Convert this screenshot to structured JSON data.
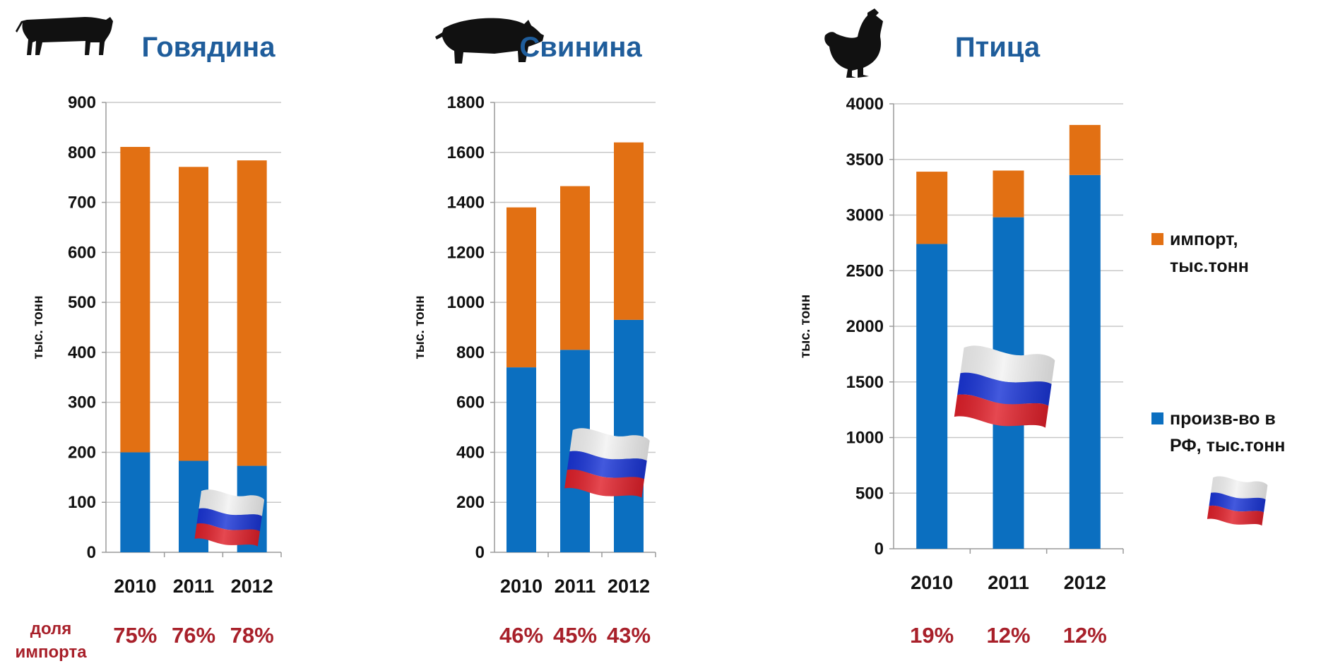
{
  "colors": {
    "import": "#e27013",
    "production": "#0b6fc0",
    "title": "#1f5d9b",
    "share": "#a8202a",
    "grid": "#c8c8c8",
    "axis": "#9a9a9a"
  },
  "icons": [
    "cow-icon",
    "pig-icon",
    "chicken-icon",
    "russia-flag-icon"
  ],
  "share_label": [
    "доля",
    "импорта"
  ],
  "legend": [
    {
      "series": "import",
      "lines": [
        "импорт,",
        "тыс.тонн"
      ]
    },
    {
      "series": "production",
      "lines": [
        "произв-во в",
        "РФ, тыс.тонн"
      ]
    }
  ],
  "chart_data": [
    {
      "type": "bar",
      "stacked": true,
      "title": "Говядина",
      "ylabel": "тыс. тонн",
      "ylim": [
        0,
        900
      ],
      "yticks": [
        0,
        100,
        200,
        300,
        400,
        500,
        600,
        700,
        800,
        900
      ],
      "grid": true,
      "categories": [
        "2010",
        "2011",
        "2012"
      ],
      "series": [
        {
          "key": "production",
          "name": "произв-во в РФ, тыс.тонн",
          "values": [
            200,
            183,
            173
          ]
        },
        {
          "key": "import",
          "name": "импорт, тыс.тонн",
          "values": [
            611,
            588,
            611
          ]
        }
      ],
      "import_share": [
        "75%",
        "76%",
        "78%"
      ]
    },
    {
      "type": "bar",
      "stacked": true,
      "title": "Свинина",
      "ylabel": "тыс. тонн",
      "ylim": [
        0,
        1800
      ],
      "yticks": [
        0,
        200,
        400,
        600,
        800,
        1000,
        1200,
        1400,
        1600,
        1800
      ],
      "grid": true,
      "categories": [
        "2010",
        "2011",
        "2012"
      ],
      "series": [
        {
          "key": "production",
          "name": "произв-во в РФ, тыс.тонн",
          "values": [
            740,
            810,
            930
          ]
        },
        {
          "key": "import",
          "name": "импорт, тыс.тонн",
          "values": [
            640,
            655,
            710
          ]
        }
      ],
      "import_share": [
        "46%",
        "45%",
        "43%"
      ]
    },
    {
      "type": "bar",
      "stacked": true,
      "title": "Птица",
      "ylabel": "тыс. тонн",
      "ylim": [
        0,
        4000
      ],
      "yticks": [
        0,
        500,
        1000,
        1500,
        2000,
        2500,
        3000,
        3500,
        4000
      ],
      "grid": true,
      "categories": [
        "2010",
        "2011",
        "2012"
      ],
      "series": [
        {
          "key": "production",
          "name": "произв-во в РФ, тыс.тонн",
          "values": [
            2740,
            2980,
            3360
          ]
        },
        {
          "key": "import",
          "name": "импорт, тыс.тонн",
          "values": [
            650,
            420,
            450
          ]
        }
      ],
      "import_share": [
        "19%",
        "12%",
        "12%"
      ]
    }
  ]
}
